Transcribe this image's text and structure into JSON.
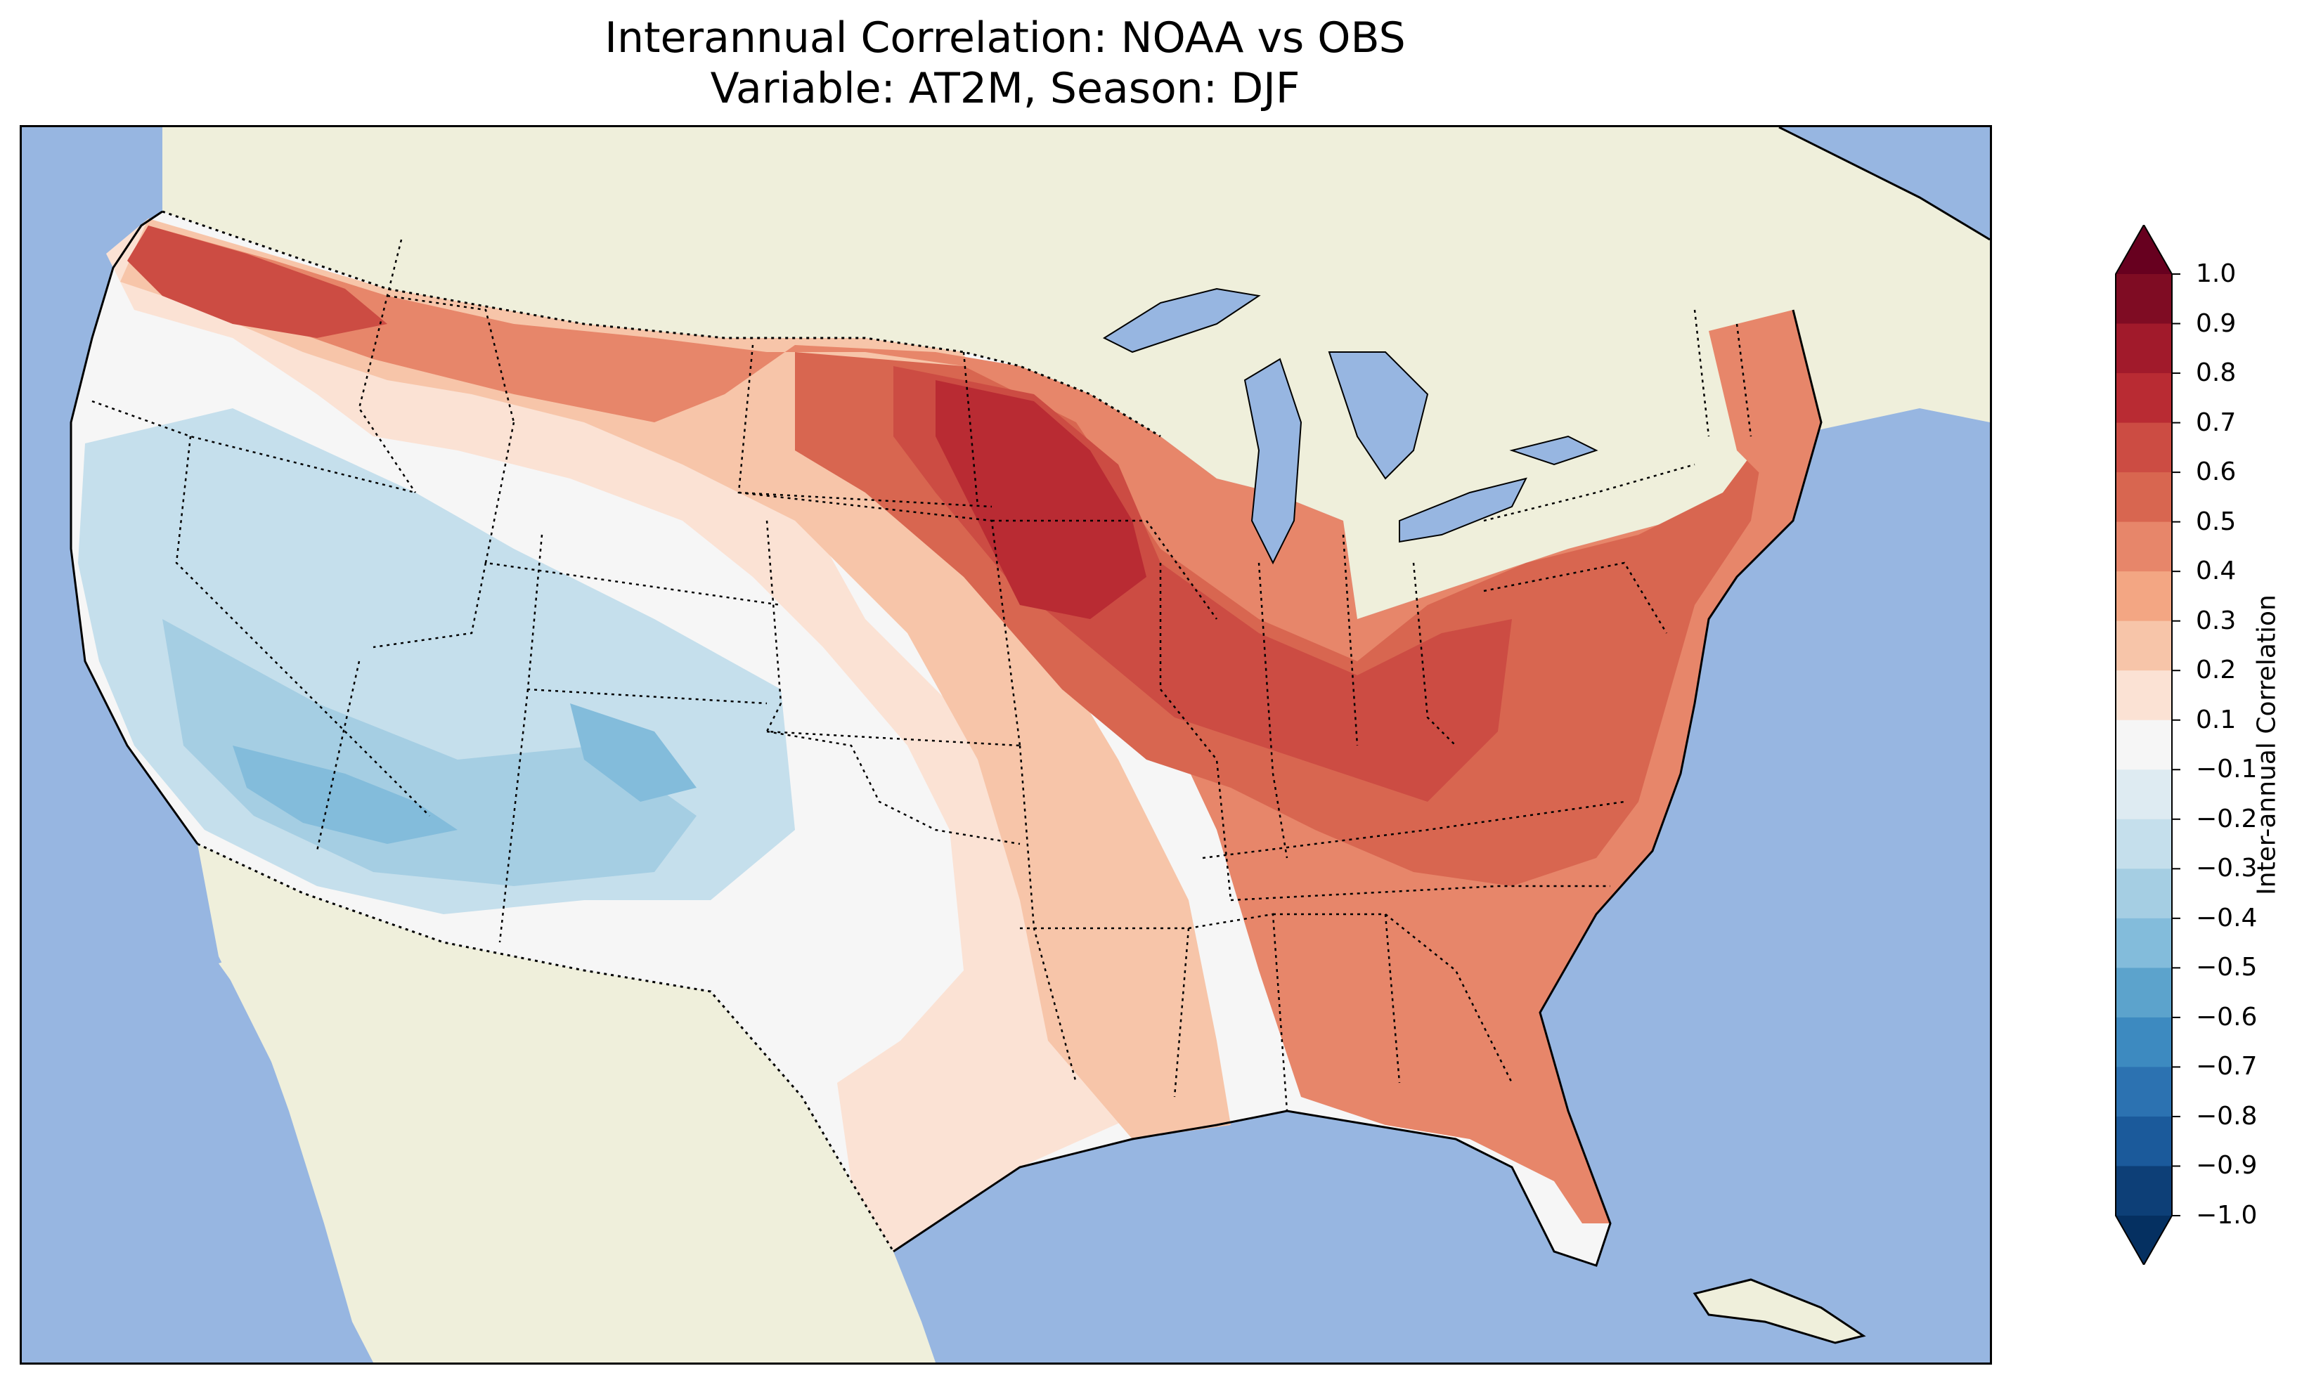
{
  "title": {
    "line1": "Interannual Correlation: NOAA vs OBS",
    "line2": "Variable: AT2M, Season: DJF"
  },
  "colors": {
    "ocean": "#97b6e1",
    "land": "#efefdb",
    "lakes": "#97b6e1"
  },
  "colorbar": {
    "label": "Inter-annual Correlation",
    "ticks": [
      "1.0",
      "0.9",
      "0.8",
      "0.7",
      "0.6",
      "0.5",
      "0.4",
      "0.3",
      "0.2",
      "0.1",
      "−0.1",
      "−0.2",
      "−0.3",
      "−0.4",
      "−0.5",
      "−0.6",
      "−0.7",
      "−0.8",
      "−0.9",
      "−1.0"
    ],
    "colors": [
      "#67001f",
      "#7f0c23",
      "#a11a2b",
      "#b92b33",
      "#cc4c43",
      "#d86650",
      "#e7866a",
      "#f3a683",
      "#f7c5a9",
      "#fbe2d4",
      "#f6f6f6",
      "#deebf2",
      "#c5dfec",
      "#a5cee3",
      "#83bcdb",
      "#5ca3cc",
      "#3d8ac0",
      "#2c72b1",
      "#1b5a9b",
      "#0d3f77",
      "#053061"
    ]
  }
}
